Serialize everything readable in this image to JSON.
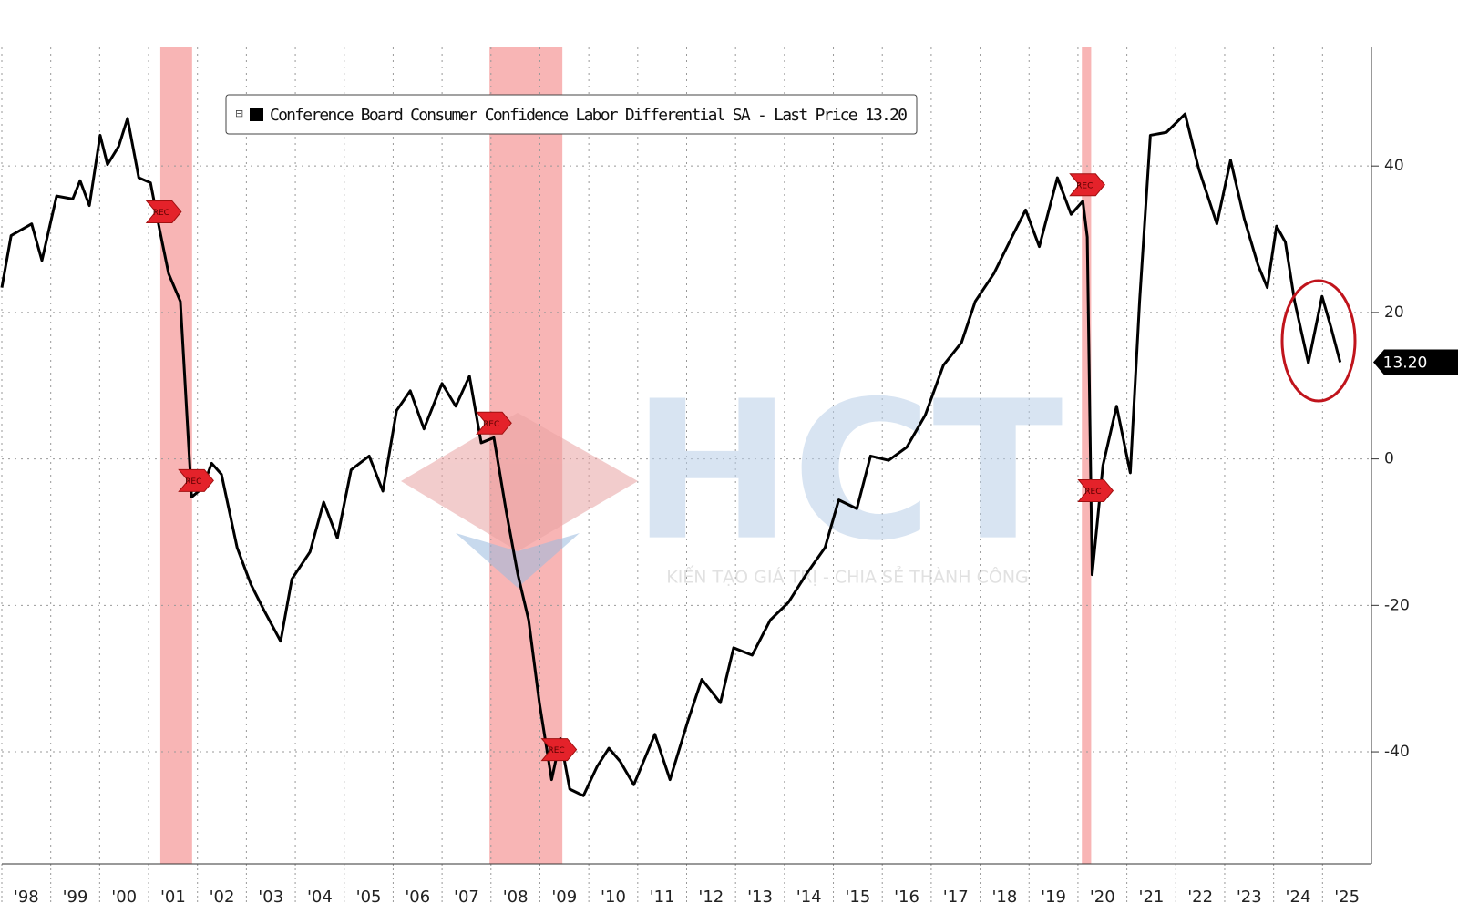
{
  "chart_data": {
    "type": "line",
    "series": [
      {
        "name": "Conference Board Consumer Confidence Labor Differential SA - Last Price 13.20",
        "color": "#000000",
        "values": [
          23.4,
          30.5,
          32.1,
          27.1,
          35.9,
          35.5,
          38.0,
          34.6,
          44.2,
          40.2,
          42.7,
          46.5,
          38.4,
          37.7,
          31.5,
          25.3,
          21.5,
          -5.2,
          -4.0,
          -0.6,
          -2.1,
          -12.1,
          -17.1,
          -20.8,
          -24.9,
          -16.4,
          -12.7,
          -5.9,
          -10.8,
          -1.5,
          0.4,
          -4.4,
          6.6,
          9.3,
          4.1,
          10.3,
          7.2,
          11.3,
          2.2,
          2.9,
          -7.1,
          -15.8,
          -22.0,
          -33.3,
          -43.8,
          -38.2,
          -45.1,
          -46.0,
          -42.0,
          -39.5,
          -41.3,
          -44.5,
          -37.6,
          -43.8,
          -35.7,
          -30.1,
          -33.3,
          -25.8,
          -26.8,
          -22.0,
          -19.6,
          -15.6,
          -12.1,
          -5.6,
          -6.8,
          0.4,
          -0.2,
          1.6,
          6.0,
          12.8,
          15.9,
          21.5,
          25.3,
          30.3,
          34.0,
          29.0,
          38.4,
          33.4,
          35.2,
          30.3,
          -15.8,
          -0.9,
          7.2,
          -1.9,
          21.5,
          44.2,
          44.6,
          47.1,
          39.6,
          32.1,
          40.8,
          32.8,
          26.5,
          23.4,
          31.8,
          29.6,
          21.5,
          13.1,
          22.2,
          17.8,
          13.2
        ]
      }
    ],
    "x": [
      1998.0,
      1998.19,
      1998.61,
      1998.82,
      1999.12,
      1999.45,
      1999.6,
      1999.79,
      2000.01,
      2000.16,
      2000.39,
      2000.57,
      2000.8,
      2001.04,
      2001.22,
      2001.41,
      2001.65,
      2001.88,
      2002.1,
      2002.29,
      2002.49,
      2002.81,
      2003.09,
      2003.37,
      2003.7,
      2003.93,
      2004.3,
      2004.58,
      2004.86,
      2005.14,
      2005.51,
      2005.79,
      2006.07,
      2006.35,
      2006.63,
      2007.0,
      2007.28,
      2007.56,
      2007.8,
      2008.06,
      2008.31,
      2008.55,
      2008.77,
      2008.99,
      2009.24,
      2009.42,
      2009.61,
      2009.89,
      2010.17,
      2010.41,
      2010.64,
      2010.92,
      2011.35,
      2011.66,
      2012.03,
      2012.31,
      2012.69,
      2012.96,
      2013.34,
      2013.71,
      2014.08,
      2014.46,
      2014.83,
      2015.11,
      2015.48,
      2015.76,
      2016.13,
      2016.5,
      2016.88,
      2017.25,
      2017.62,
      2017.9,
      2018.28,
      2018.65,
      2018.93,
      2019.21,
      2019.58,
      2019.86,
      2020.1,
      2020.19,
      2020.29,
      2020.51,
      2020.79,
      2021.07,
      2021.26,
      2021.48,
      2021.81,
      2022.19,
      2022.47,
      2022.84,
      2023.12,
      2023.4,
      2023.68,
      2023.87,
      2024.06,
      2024.24,
      2024.43,
      2024.71,
      2024.99,
      2025.18,
      2025.36
    ],
    "xlim": [
      1998,
      2026
    ],
    "xticks": [
      {
        "value": 1998,
        "label": "'98"
      },
      {
        "value": 1999,
        "label": "'99"
      },
      {
        "value": 2000,
        "label": "'00"
      },
      {
        "value": 2001,
        "label": "'01"
      },
      {
        "value": 2002,
        "label": "'02"
      },
      {
        "value": 2003,
        "label": "'03"
      },
      {
        "value": 2004,
        "label": "'04"
      },
      {
        "value": 2005,
        "label": "'05"
      },
      {
        "value": 2006,
        "label": "'06"
      },
      {
        "value": 2007,
        "label": "'07"
      },
      {
        "value": 2008,
        "label": "'08"
      },
      {
        "value": 2009,
        "label": "'09"
      },
      {
        "value": 2010,
        "label": "'10"
      },
      {
        "value": 2011,
        "label": "'11"
      },
      {
        "value": 2012,
        "label": "'12"
      },
      {
        "value": 2013,
        "label": "'13"
      },
      {
        "value": 2014,
        "label": "'14"
      },
      {
        "value": 2015,
        "label": "'15"
      },
      {
        "value": 2016,
        "label": "'16"
      },
      {
        "value": 2017,
        "label": "'17"
      },
      {
        "value": 2018,
        "label": "'18"
      },
      {
        "value": 2019,
        "label": "'19"
      },
      {
        "value": 2020,
        "label": "'20"
      },
      {
        "value": 2021,
        "label": "'21"
      },
      {
        "value": 2022,
        "label": "'22"
      },
      {
        "value": 2023,
        "label": "'23"
      },
      {
        "value": 2024,
        "label": "'24"
      },
      {
        "value": 2025,
        "label": "'25"
      }
    ],
    "ylim": [
      -55.3,
      56.2
    ],
    "yticks": [
      40,
      20,
      0,
      -20,
      -40
    ],
    "grid": true,
    "recessions": [
      [
        2001.24,
        2001.89
      ],
      [
        2007.97,
        2009.46
      ],
      [
        2020.08,
        2020.27
      ]
    ],
    "rec_markers": [
      {
        "label": "REC",
        "x": 2001.22
      },
      {
        "label": "REC",
        "x": 2001.88
      },
      {
        "label": "REC",
        "x": 2007.97
      },
      {
        "label": "REC",
        "x": 2009.3
      },
      {
        "label": "REC",
        "x": 2020.1
      },
      {
        "label": "REC",
        "x": 2020.27
      }
    ],
    "last_price": {
      "value": 13.2,
      "label": "13.20"
    },
    "watermark": {
      "logo": "HCT",
      "slogan": "KIẾN TẠO GIÁ TRỊ - CHIA SẺ THÀNH CÔNG"
    }
  }
}
